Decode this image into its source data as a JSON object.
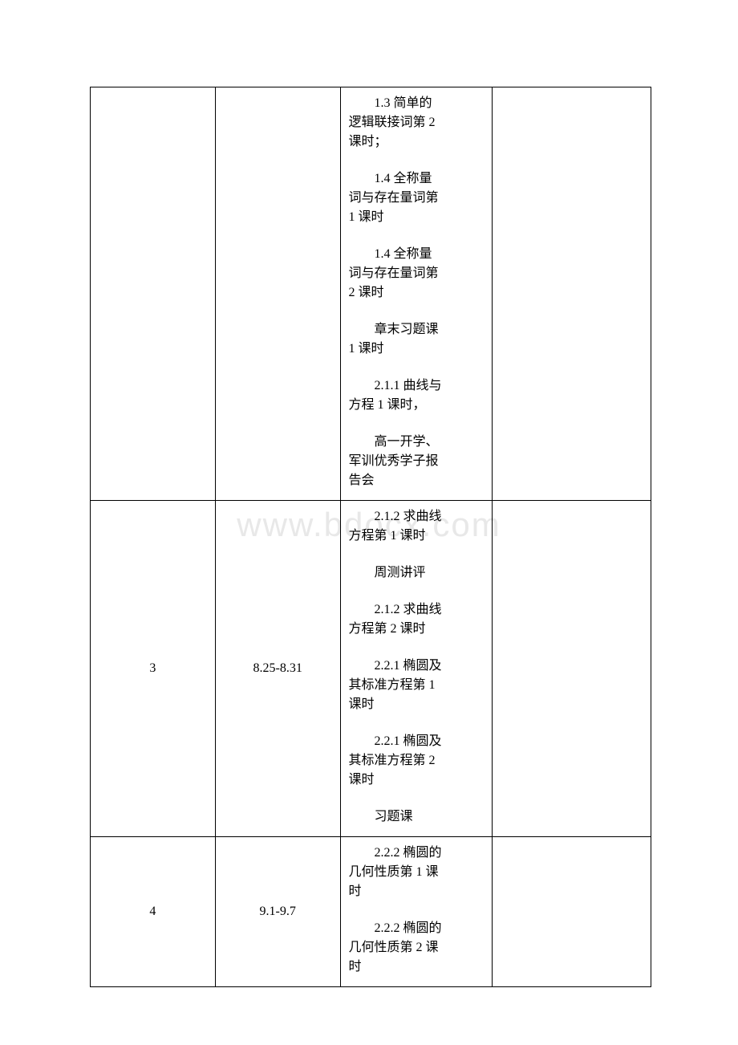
{
  "watermark": "www.bdocx.com",
  "rows": [
    {
      "week": "",
      "dates": "",
      "content": [
        {
          "lines": [
            "　　1.3 简单的",
            "逻辑联接词第 2",
            "课时；"
          ]
        },
        {
          "lines": [
            "　　1.4 全称量",
            "词与存在量词第",
            "1 课时"
          ]
        },
        {
          "lines": [
            "　　1.4 全称量",
            "词与存在量词第",
            "2 课时"
          ]
        },
        {
          "lines": [
            "　　章末习题课",
            "1 课时"
          ]
        },
        {
          "lines": [
            "　　2.1.1 曲线与",
            "方程 1 课时，"
          ]
        },
        {
          "lines": [
            "　　高一开学、",
            "军训优秀学子报",
            "告会"
          ]
        }
      ]
    },
    {
      "week": "3",
      "dates": "8.25-8.31",
      "content": [
        {
          "lines": [
            "　　2.1.2 求曲线",
            "方程第 1 课时"
          ]
        },
        {
          "lines": [
            "　　周测讲评"
          ],
          "center": true
        },
        {
          "lines": [
            "　　2.1.2 求曲线",
            "方程第 2 课时"
          ]
        },
        {
          "lines": [
            "　　2.2.1 椭圆及",
            "其标准方程第 1",
            "课时"
          ]
        },
        {
          "lines": [
            "　　2.2.1 椭圆及",
            "其标准方程第 2",
            "课时"
          ]
        },
        {
          "lines": [
            "　　习题课"
          ],
          "center": true
        }
      ]
    },
    {
      "week": "4",
      "dates": "9.1-9.7",
      "content": [
        {
          "lines": [
            "　　2.2.2 椭圆的",
            "几何性质第 1 课",
            "时"
          ]
        },
        {
          "lines": [
            "　　2.2.2 椭圆的",
            "几何性质第 2 课",
            "时"
          ]
        }
      ]
    }
  ]
}
